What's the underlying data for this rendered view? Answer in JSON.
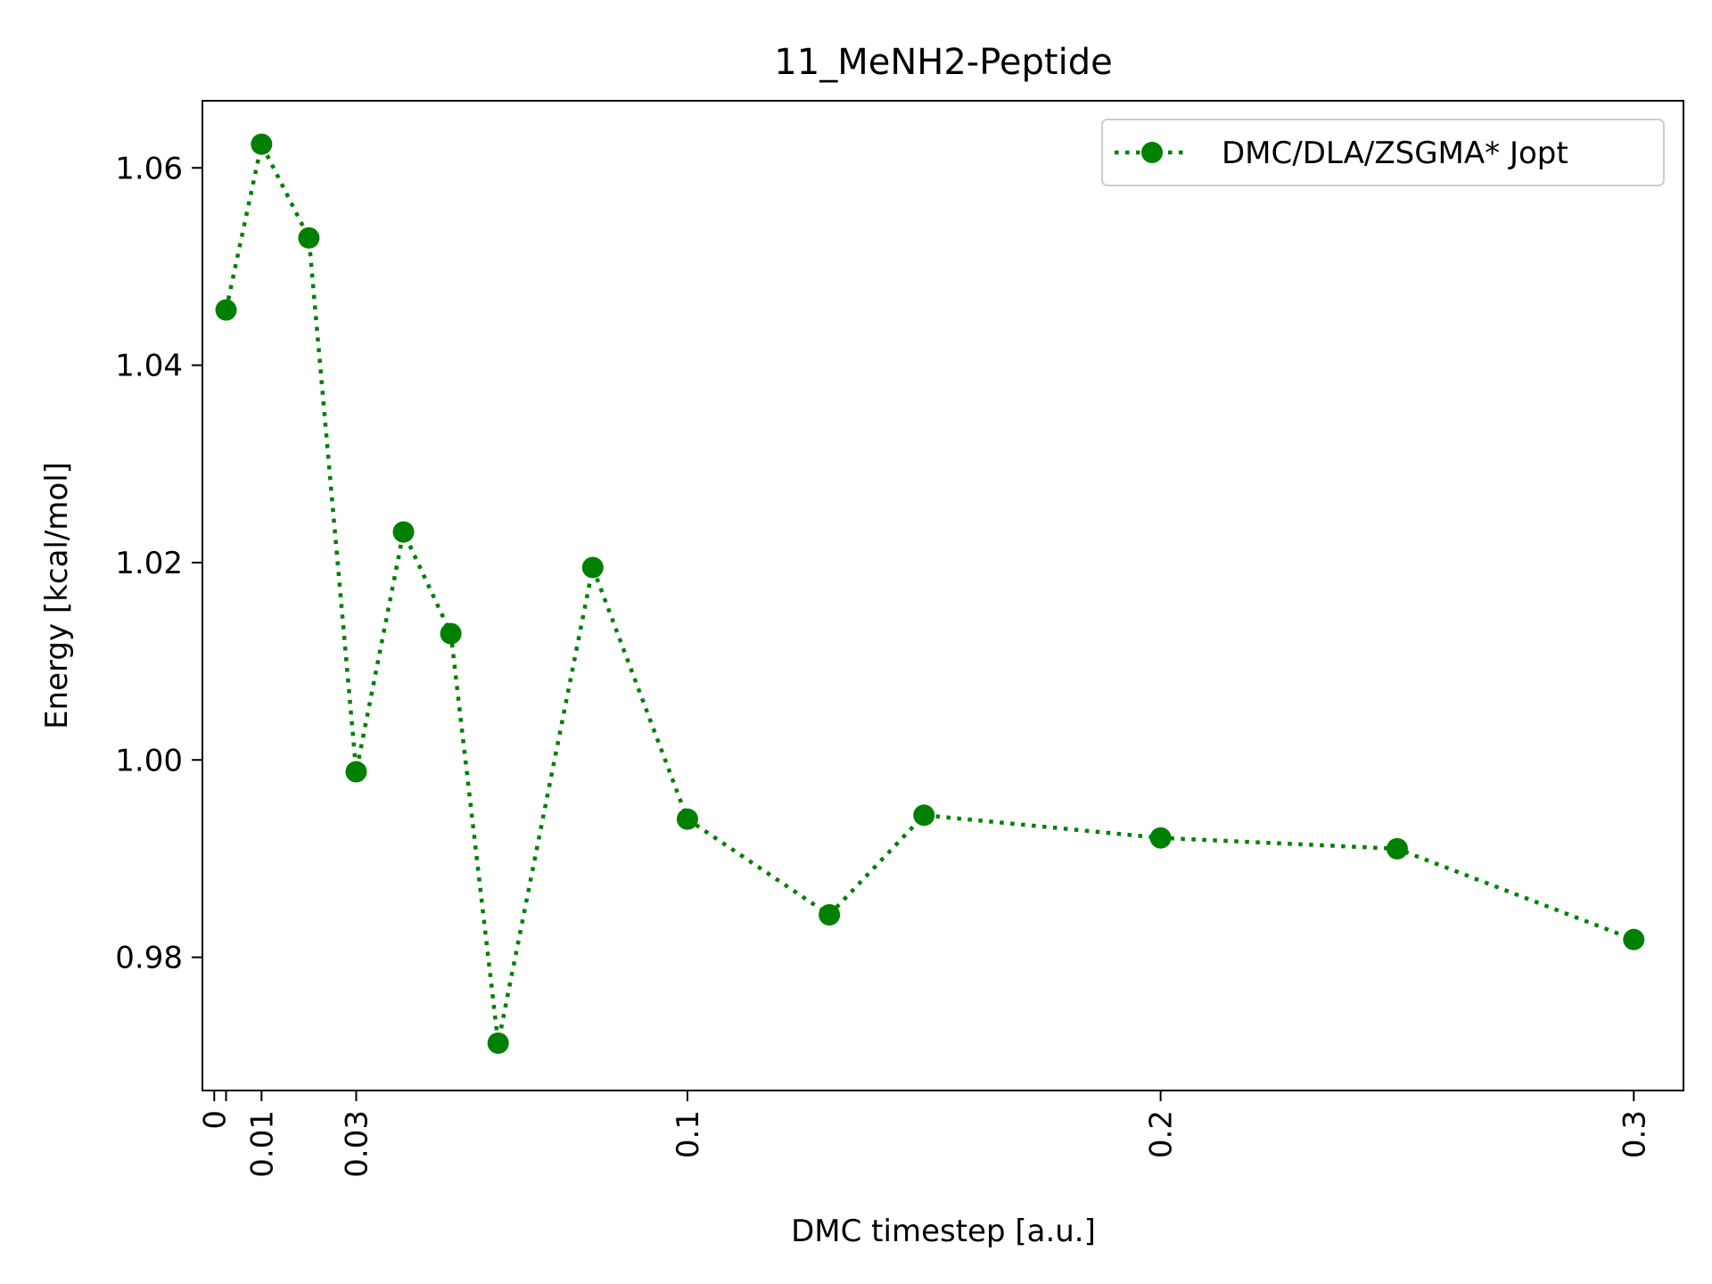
{
  "chart_data": {
    "type": "line",
    "title": "11_MeNH2-Peptide",
    "xlabel": "DMC timestep [a.u.]",
    "ylabel": "Energy [kcal/mol]",
    "xlim": [
      -0.0025,
      0.3105
    ],
    "ylim": [
      0.9665,
      1.0668
    ],
    "x_ticks": [
      {
        "value": 0,
        "label": "0"
      },
      {
        "value": 0.0025,
        "label": ""
      },
      {
        "value": 0.01,
        "label": "0.01"
      },
      {
        "value": 0.03,
        "label": "0.03"
      },
      {
        "value": 0.1,
        "label": "0.1"
      },
      {
        "value": 0.2,
        "label": "0.2"
      },
      {
        "value": 0.3,
        "label": "0.3"
      }
    ],
    "y_ticks": [
      {
        "value": 0.98,
        "label": "0.98"
      },
      {
        "value": 1.0,
        "label": "1.00"
      },
      {
        "value": 1.02,
        "label": "1.02"
      },
      {
        "value": 1.04,
        "label": "1.04"
      },
      {
        "value": 1.06,
        "label": "1.06"
      }
    ],
    "grid": false,
    "legend_position": "top-right",
    "series": [
      {
        "name": "DMC/DLA/ZSGMA* Jopt",
        "color": "#008000",
        "line_style": "dotted",
        "marker": "circle",
        "x": [
          0.0025,
          0.01,
          0.02,
          0.03,
          0.04,
          0.05,
          0.06,
          0.08,
          0.1,
          0.13,
          0.15,
          0.2,
          0.25,
          0.3
        ],
        "y": [
          1.0456,
          1.0624,
          1.0529,
          0.9988,
          1.0231,
          1.0128,
          0.9713,
          1.0195,
          0.994,
          0.9843,
          0.9944,
          0.9921,
          0.991,
          0.9818
        ]
      }
    ]
  }
}
